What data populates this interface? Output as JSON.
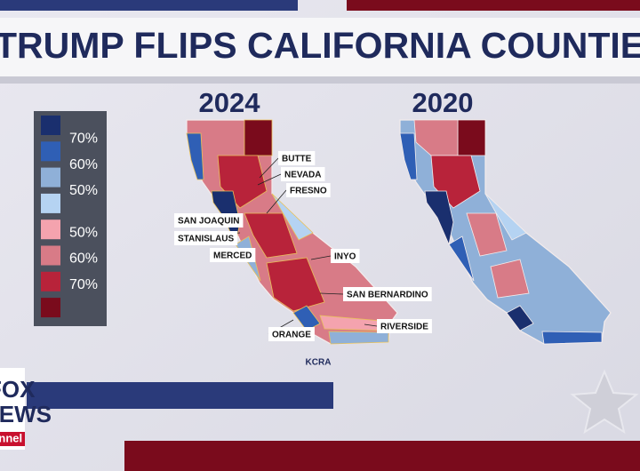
{
  "header": {
    "title": "TRUMP FLIPS CALIFORNIA COUNTIES"
  },
  "legend": {
    "democrat": [
      "70%",
      "60%",
      "50%"
    ],
    "republican": [
      "50%",
      "60%",
      "70%"
    ]
  },
  "maps": [
    {
      "year": "2024",
      "county_labels": [
        "BUTTE",
        "NEVADA",
        "FRESNO",
        "SAN JOAQUIN",
        "STANISLAUS",
        "MERCED",
        "INYO",
        "SAN BERNARDINO",
        "RIVERSIDE",
        "ORANGE"
      ],
      "credit": "KCRA"
    },
    {
      "year": "2020"
    }
  ],
  "logo": {
    "lines": [
      "FOX",
      "NEWS",
      "channel"
    ]
  }
}
